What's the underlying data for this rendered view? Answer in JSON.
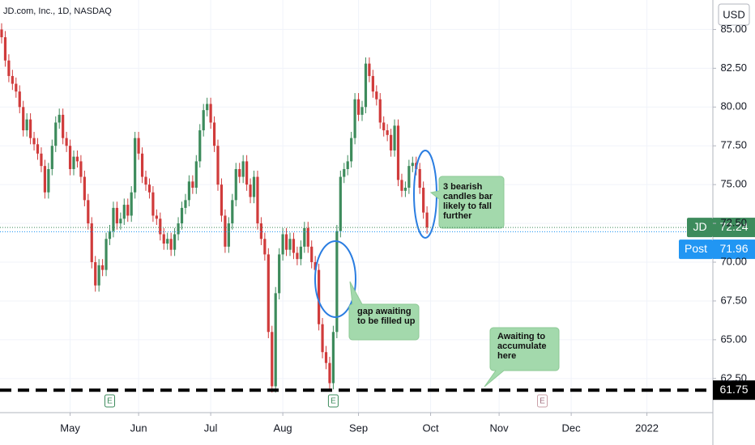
{
  "chart_data": {
    "type": "candlestick",
    "title": "JD.com, Inc., 1D, NASDAQ",
    "currency": "USD",
    "up_color": "#3d8b5c",
    "down_color": "#d03b3b",
    "grid": true,
    "xlim": [
      -0.45,
      197.3
    ],
    "ylim": [
      60.3,
      86.9
    ],
    "yticks": [
      {
        "value": 62.5,
        "label": "62.50"
      },
      {
        "value": 65,
        "label": "65.00"
      },
      {
        "value": 67.5,
        "label": "67.50"
      },
      {
        "value": 70,
        "label": "70.00"
      },
      {
        "value": 72.5,
        "label": "72.50"
      },
      {
        "value": 75,
        "label": "75.00"
      },
      {
        "value": 77.5,
        "label": "77.50"
      },
      {
        "value": 80,
        "label": "80.00"
      },
      {
        "value": 82.5,
        "label": "82.50"
      },
      {
        "value": 85,
        "label": "85.00"
      }
    ],
    "xticks": [
      {
        "value": 19,
        "label": "May"
      },
      {
        "value": 38,
        "label": "Jun"
      },
      {
        "value": 58,
        "label": "Jul"
      },
      {
        "value": 78,
        "label": "Aug"
      },
      {
        "value": 99,
        "label": "Sep"
      },
      {
        "value": 119,
        "label": "Oct"
      },
      {
        "value": 138,
        "label": "Nov"
      },
      {
        "value": 158,
        "label": "Dec"
      },
      {
        "value": 179,
        "label": "2022"
      }
    ],
    "open": [
      85,
      84.5,
      83,
      82,
      81.5,
      81,
      80,
      78.5,
      79.2,
      78,
      77.6,
      77,
      76.2,
      74.5,
      76,
      77.5,
      79,
      79.5,
      78,
      77.5,
      76,
      76.8,
      76.5,
      75.5,
      74,
      72.5,
      70,
      68.5,
      69.8,
      69.5,
      71.5,
      72,
      73.5,
      72.5,
      72.8,
      73.7,
      73,
      74.5,
      78,
      77,
      75.5,
      75,
      74.5,
      73,
      72.8,
      71.8,
      71.2,
      71.5,
      70.8,
      71.8,
      72.5,
      73.5,
      74,
      75.2,
      74.8,
      76.5,
      78.5,
      79.8,
      80.2,
      79,
      77.5,
      75,
      73,
      71,
      72.5,
      74,
      76,
      75.5,
      76.5,
      75,
      74.2,
      75.5,
      72.5,
      71.5,
      70.5,
      65.5,
      62,
      68,
      70.5,
      71.8,
      70.8,
      71.5,
      70.6,
      70.2,
      71,
      72.2,
      71,
      70,
      69.5,
      66,
      64.2,
      63.5,
      62.2,
      65.5,
      72,
      75.5,
      76,
      76.5,
      78,
      80.5,
      79.5,
      80,
      82.8,
      82,
      81,
      80.5,
      79,
      78.5,
      78.2,
      77.2,
      78.8,
      75.3,
      74.6,
      74.8,
      76.2,
      76.4,
      76,
      74.8,
      73.2
    ],
    "high": [
      85.4,
      84.9,
      83.4,
      82.4,
      81.9,
      81.4,
      80.4,
      79.6,
      79.6,
      78.4,
      78,
      77.4,
      76.6,
      76.4,
      77.9,
      79.4,
      79.9,
      79.9,
      78.4,
      77.9,
      77.2,
      77.2,
      76.9,
      75.9,
      74.4,
      72.9,
      70.4,
      70.2,
      70.2,
      71.9,
      72.4,
      73.9,
      73.9,
      73.2,
      74.1,
      74.1,
      74.9,
      78.4,
      78.4,
      77.4,
      75.9,
      75.4,
      74.9,
      73.4,
      73.2,
      72.2,
      71.9,
      71.9,
      72.2,
      72.9,
      73.9,
      74.4,
      75.6,
      75.6,
      76.9,
      78.9,
      80.2,
      80.6,
      80.6,
      79.4,
      77.9,
      75.4,
      73.4,
      72.9,
      74.4,
      76.4,
      76.4,
      76.9,
      76.9,
      75.4,
      75.9,
      75.9,
      72.9,
      71.9,
      70.9,
      65.9,
      68.4,
      70.9,
      72.2,
      72.2,
      71.9,
      71.9,
      71,
      71.4,
      72.6,
      72.6,
      71.4,
      70.4,
      69.9,
      66.4,
      64.6,
      63.9,
      65.9,
      72.4,
      75.9,
      76.4,
      76.9,
      78.4,
      80.9,
      80.9,
      80.4,
      83.2,
      83.2,
      82.4,
      81.4,
      80.9,
      79.4,
      78.9,
      78.6,
      79.2,
      79.2,
      75.7,
      75.2,
      76.6,
      76.8,
      76.8,
      76.4,
      75.2,
      73.6
    ],
    "low": [
      84.1,
      82.6,
      81.6,
      81.1,
      80.6,
      79.6,
      78.1,
      78.1,
      77.6,
      77.2,
      76.6,
      75.8,
      74.1,
      74.1,
      75.6,
      77.1,
      78.6,
      77.6,
      77.1,
      75.6,
      75.6,
      76.1,
      75.1,
      73.6,
      72.1,
      69.6,
      68.1,
      68.1,
      69.1,
      69.1,
      71.1,
      71.6,
      72.1,
      72.1,
      72.4,
      72.6,
      72.6,
      74.1,
      76.6,
      75.1,
      74.6,
      74.1,
      72.6,
      72.4,
      71.4,
      70.8,
      70.8,
      70.4,
      70.4,
      71.4,
      72.1,
      73.1,
      73.6,
      74.4,
      74.4,
      76.1,
      78.1,
      79.4,
      78.6,
      77.1,
      74.6,
      72.6,
      70.6,
      70.6,
      72.1,
      73.6,
      75.1,
      75.1,
      74.6,
      73.8,
      73.8,
      72.1,
      71.1,
      70.1,
      65.1,
      61.6,
      61.6,
      67.6,
      70.1,
      70.4,
      70.4,
      70.2,
      69.8,
      69.8,
      70.6,
      70.6,
      69.6,
      69.1,
      65.6,
      63.8,
      63.1,
      61.8,
      61.8,
      65.1,
      71.6,
      75.1,
      75.6,
      76.1,
      77.6,
      79.1,
      79.1,
      79.6,
      81.6,
      80.6,
      80.1,
      78.6,
      78.1,
      77.8,
      76.8,
      76.8,
      74.9,
      74.2,
      74.2,
      74.4,
      75.8,
      75.6,
      74.4,
      72.8,
      71.84
    ],
    "close": [
      84.5,
      83,
      82,
      81.5,
      81,
      80,
      78.5,
      79.2,
      78,
      77.6,
      77,
      76.2,
      74.5,
      76,
      77.5,
      79,
      79.5,
      78,
      77.5,
      76,
      76.8,
      76.5,
      75.5,
      74,
      72.5,
      70,
      68.5,
      69.8,
      69.5,
      71.5,
      72,
      73.5,
      72.5,
      72.8,
      73.7,
      73,
      74.5,
      78,
      77,
      75.5,
      75,
      74.5,
      73,
      72.8,
      71.8,
      71.2,
      71.5,
      70.8,
      71.8,
      72.5,
      73.5,
      74,
      75.2,
      74.8,
      76.5,
      78.5,
      79.8,
      80.2,
      79,
      77.5,
      75,
      73,
      71,
      72.5,
      74,
      76,
      75.5,
      76.5,
      75,
      74.2,
      75.5,
      72.5,
      71.5,
      70.5,
      65.5,
      62,
      68,
      70.5,
      71.8,
      70.8,
      71.5,
      70.6,
      70.2,
      71,
      72.2,
      71,
      70,
      69.5,
      66,
      64.2,
      63.5,
      62.2,
      65.5,
      72,
      75.5,
      76,
      76.5,
      78,
      80.5,
      79.5,
      80,
      82.8,
      82,
      81,
      80.5,
      79,
      78.5,
      78.2,
      77.2,
      78.8,
      75.3,
      74.6,
      74.8,
      76.2,
      76.4,
      76,
      74.8,
      73.2,
      72.24
    ],
    "last_price": {
      "label": "JD",
      "value": 72.24,
      "color": "#3d8b5c"
    },
    "post_price": {
      "label": "Post",
      "value": 71.96,
      "color": "#2196f3"
    },
    "level": {
      "value": 61.75,
      "color": "#000000"
    },
    "events": [
      {
        "x": 30,
        "label": "E"
      },
      {
        "x": 92,
        "label": "E"
      },
      {
        "x": 150,
        "label": "E"
      }
    ],
    "annotations": [
      {
        "lines": [
          "3 bearish",
          "candles bar",
          "likely to fall",
          "further"
        ]
      },
      {
        "lines": [
          "gap awaiting",
          "to be filled up"
        ]
      },
      {
        "lines": [
          "Awaiting to",
          "accumulate",
          "here"
        ]
      }
    ]
  }
}
